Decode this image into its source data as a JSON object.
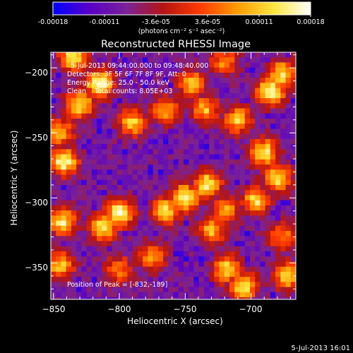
{
  "colorbar": {
    "tick_labels": [
      "-0.00018",
      "-0.00011",
      "-3.6e-05",
      "3.6e-05",
      "0.00011",
      "0.00018"
    ],
    "unit_label": "(photons cm⁻² s⁻¹ asec⁻²)",
    "range": [
      -0.00018,
      0.00018
    ],
    "colormap": [
      "#0000ff",
      "#5a00c8",
      "#7a2296",
      "#b41414",
      "#ff3a00",
      "#ff9a00",
      "#ffe640",
      "#ffffff"
    ]
  },
  "chart_data": {
    "type": "heatmap",
    "title": "Reconstructed RHESSI Image",
    "xlabel": "Heliocentric X (arcsec)",
    "ylabel": "Heliocentric Y (arcsec)",
    "xlim": [
      -852,
      -666
    ],
    "ylim": [
      -378,
      -188
    ],
    "x_ticks": [
      -850,
      -800,
      -750,
      -700
    ],
    "y_ticks": [
      -200,
      -250,
      -300,
      -350
    ],
    "x_tick_labels": [
      "−850",
      "−800",
      "−750",
      "−700"
    ],
    "y_tick_labels": [
      "−200",
      "−250",
      "−300",
      "−350"
    ],
    "grid": false,
    "legend": "none",
    "annotations": [
      "5-Jul-2013 09:44:00.000 to 09:48:40.000",
      "Detectors: 3F 5F 6F 7F 8F 9F, Att: 0",
      "Energy Range: 25.0 - 50.0 keV",
      "Clean    Total counts: 8.05E+03"
    ],
    "peak_label": "Position of Peak = [-832,-189]",
    "peak_position": [
      -832,
      -189
    ],
    "hot_spots": [
      {
        "x": -815,
        "y": -212,
        "v": 1.0
      },
      {
        "x": -835,
        "y": -192,
        "v": 0.9
      },
      {
        "x": -830,
        "y": -228,
        "v": 0.85
      },
      {
        "x": -845,
        "y": -250,
        "v": 0.7
      },
      {
        "x": -842,
        "y": -272,
        "v": 0.95
      },
      {
        "x": -790,
        "y": -242,
        "v": 0.75
      },
      {
        "x": -765,
        "y": -232,
        "v": 0.65
      },
      {
        "x": -735,
        "y": -232,
        "v": 0.7
      },
      {
        "x": -745,
        "y": -212,
        "v": 0.7
      },
      {
        "x": -720,
        "y": -195,
        "v": 0.6
      },
      {
        "x": -710,
        "y": -240,
        "v": 0.75
      },
      {
        "x": -685,
        "y": -218,
        "v": 1.0
      },
      {
        "x": -676,
        "y": -205,
        "v": 0.85
      },
      {
        "x": -690,
        "y": -265,
        "v": 0.85
      },
      {
        "x": -680,
        "y": -285,
        "v": 0.85
      },
      {
        "x": -696,
        "y": -302,
        "v": 0.8
      },
      {
        "x": -750,
        "y": -300,
        "v": 0.95
      },
      {
        "x": -733,
        "y": -290,
        "v": 0.9
      },
      {
        "x": -720,
        "y": -310,
        "v": 0.7
      },
      {
        "x": -765,
        "y": -310,
        "v": 0.8
      },
      {
        "x": -800,
        "y": -312,
        "v": 0.95
      },
      {
        "x": -812,
        "y": -322,
        "v": 0.85
      },
      {
        "x": -843,
        "y": -318,
        "v": 0.85
      },
      {
        "x": -845,
        "y": -352,
        "v": 0.75
      },
      {
        "x": -775,
        "y": -345,
        "v": 0.65
      },
      {
        "x": -800,
        "y": -355,
        "v": 0.55
      },
      {
        "x": -730,
        "y": -325,
        "v": 0.7
      },
      {
        "x": -718,
        "y": -355,
        "v": 0.8
      },
      {
        "x": -706,
        "y": -368,
        "v": 0.85
      },
      {
        "x": -676,
        "y": -330,
        "v": 0.6
      },
      {
        "x": -672,
        "y": -360,
        "v": 0.8
      }
    ]
  },
  "footer": {
    "timestamp": "5-Jul-2013 16:01"
  }
}
